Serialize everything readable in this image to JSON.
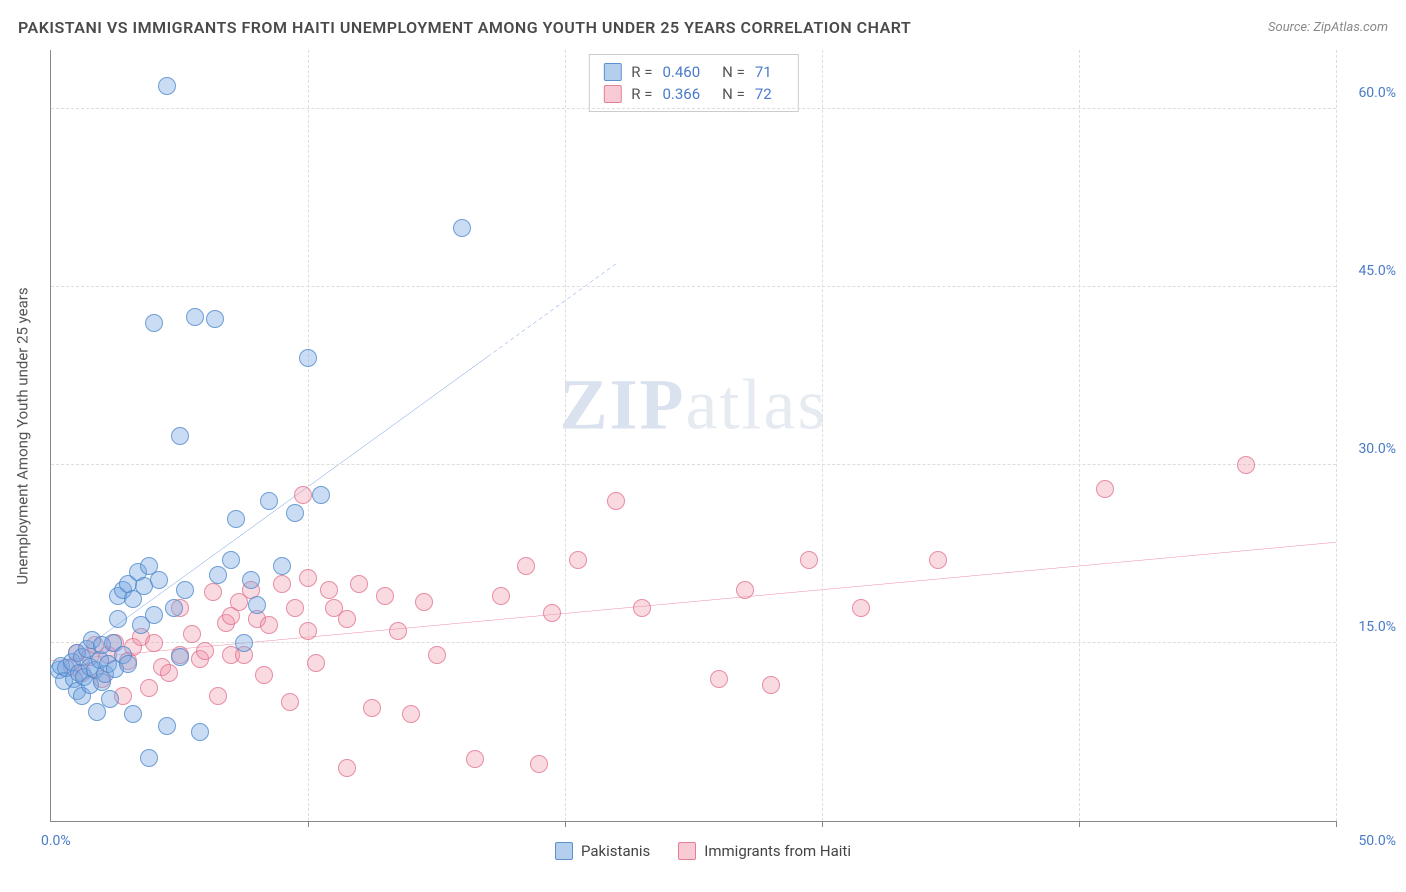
{
  "header": {
    "title": "PAKISTANI VS IMMIGRANTS FROM HAITI UNEMPLOYMENT AMONG YOUTH UNDER 25 YEARS CORRELATION CHART",
    "source_prefix": "Source: ",
    "source_name": "ZipAtlas.com"
  },
  "ylabel": "Unemployment Among Youth under 25 years",
  "watermark": {
    "p1": "ZIP",
    "p2": "atlas"
  },
  "chart": {
    "type": "scatter",
    "xlim": [
      0,
      50
    ],
    "ylim": [
      0,
      65
    ],
    "x_axis_label_start": "0.0%",
    "x_axis_label_end": "50.0%",
    "x_tick_marks_pct": [
      10,
      20,
      30,
      40,
      50
    ],
    "y_ticks": [
      {
        "value": 15,
        "label": "15.0%"
      },
      {
        "value": 30,
        "label": "30.0%"
      },
      {
        "value": 45,
        "label": "45.0%"
      },
      {
        "value": 60,
        "label": "60.0%"
      }
    ],
    "grid_color": "#dddddd",
    "background_color": "#ffffff",
    "series": {
      "blue": {
        "label": "Pakistanis",
        "fill": "rgba(119,167,224,0.4)",
        "stroke": "rgba(70,130,200,0.7)",
        "trend_color": "#2e6bd0",
        "trend": {
          "x1": 0,
          "y1": 12.5,
          "x2": 22,
          "y2": 47,
          "dash_after_x": 17
        },
        "stats": {
          "R": "0.460",
          "N": "71"
        },
        "points": [
          [
            0.3,
            12.7
          ],
          [
            0.4,
            13.1
          ],
          [
            0.5,
            11.8
          ],
          [
            0.6,
            12.9
          ],
          [
            0.8,
            13.4
          ],
          [
            0.9,
            12.0
          ],
          [
            1.0,
            14.2
          ],
          [
            1.0,
            11.0
          ],
          [
            1.1,
            12.5
          ],
          [
            1.2,
            13.8
          ],
          [
            1.2,
            10.5
          ],
          [
            1.3,
            12.1
          ],
          [
            1.4,
            14.5
          ],
          [
            1.5,
            11.5
          ],
          [
            1.5,
            13.0
          ],
          [
            1.6,
            15.3
          ],
          [
            1.7,
            12.7
          ],
          [
            1.8,
            9.2
          ],
          [
            1.9,
            13.6
          ],
          [
            2.0,
            11.7
          ],
          [
            2.0,
            14.8
          ],
          [
            2.1,
            12.4
          ],
          [
            2.2,
            13.2
          ],
          [
            2.3,
            10.3
          ],
          [
            2.4,
            15.0
          ],
          [
            2.5,
            12.8
          ],
          [
            2.6,
            17.0
          ],
          [
            2.6,
            19.0
          ],
          [
            2.8,
            14.0
          ],
          [
            2.8,
            19.5
          ],
          [
            3.0,
            20.0
          ],
          [
            3.0,
            13.2
          ],
          [
            3.2,
            18.7
          ],
          [
            3.2,
            9.0
          ],
          [
            3.4,
            21.0
          ],
          [
            3.5,
            16.5
          ],
          [
            3.6,
            19.8
          ],
          [
            3.8,
            21.5
          ],
          [
            3.8,
            5.3
          ],
          [
            4.0,
            17.4
          ],
          [
            4.0,
            42.0
          ],
          [
            4.2,
            20.3
          ],
          [
            4.5,
            8.0
          ],
          [
            4.5,
            62.0
          ],
          [
            4.8,
            18.0
          ],
          [
            5.0,
            13.8
          ],
          [
            5.0,
            32.5
          ],
          [
            5.2,
            19.5
          ],
          [
            5.6,
            42.5
          ],
          [
            5.8,
            7.5
          ],
          [
            6.4,
            42.3
          ],
          [
            6.5,
            20.7
          ],
          [
            7.0,
            22.0
          ],
          [
            7.2,
            25.5
          ],
          [
            7.5,
            15.0
          ],
          [
            7.8,
            20.3
          ],
          [
            8.0,
            18.2
          ],
          [
            8.5,
            27.0
          ],
          [
            9.0,
            21.5
          ],
          [
            9.5,
            26.0
          ],
          [
            10.0,
            39.0
          ],
          [
            10.5,
            27.5
          ],
          [
            16.0,
            50.0
          ]
        ]
      },
      "pink": {
        "label": "Immigrants from Haiti",
        "fill": "rgba(240,150,170,0.35)",
        "stroke": "rgba(220,100,130,0.65)",
        "trend_color": "#e6577e",
        "trend": {
          "x1": 0,
          "y1": 13.5,
          "x2": 50,
          "y2": 23.5
        },
        "stats": {
          "R": "0.366",
          "N": "72"
        },
        "points": [
          [
            0.8,
            13.0
          ],
          [
            1.0,
            14.2
          ],
          [
            1.2,
            12.5
          ],
          [
            1.5,
            13.8
          ],
          [
            1.7,
            14.8
          ],
          [
            2.0,
            12.0
          ],
          [
            2.2,
            14.0
          ],
          [
            2.5,
            15.0
          ],
          [
            2.8,
            10.5
          ],
          [
            3.0,
            13.5
          ],
          [
            3.2,
            14.7
          ],
          [
            3.5,
            15.5
          ],
          [
            3.8,
            11.2
          ],
          [
            4.0,
            15.0
          ],
          [
            4.3,
            13.0
          ],
          [
            4.6,
            12.5
          ],
          [
            5.0,
            18.0
          ],
          [
            5.0,
            14.0
          ],
          [
            5.5,
            15.8
          ],
          [
            5.8,
            13.7
          ],
          [
            6.0,
            14.3
          ],
          [
            6.3,
            19.3
          ],
          [
            6.5,
            10.5
          ],
          [
            6.8,
            16.7
          ],
          [
            7.0,
            14.0
          ],
          [
            7.0,
            17.3
          ],
          [
            7.3,
            18.5
          ],
          [
            7.5,
            14.0
          ],
          [
            7.8,
            19.5
          ],
          [
            8.0,
            17.0
          ],
          [
            8.3,
            12.3
          ],
          [
            8.5,
            16.5
          ],
          [
            9.0,
            20.0
          ],
          [
            9.3,
            10.0
          ],
          [
            9.5,
            18.0
          ],
          [
            9.8,
            27.5
          ],
          [
            10.0,
            16.0
          ],
          [
            10.0,
            20.5
          ],
          [
            10.3,
            13.3
          ],
          [
            10.8,
            19.5
          ],
          [
            11.0,
            18.0
          ],
          [
            11.5,
            17.0
          ],
          [
            11.5,
            4.5
          ],
          [
            12.0,
            20.0
          ],
          [
            12.5,
            9.5
          ],
          [
            13.0,
            19.0
          ],
          [
            13.5,
            16.0
          ],
          [
            14.0,
            9.0
          ],
          [
            14.5,
            18.5
          ],
          [
            15.0,
            14.0
          ],
          [
            16.5,
            5.2
          ],
          [
            17.5,
            19.0
          ],
          [
            18.5,
            21.5
          ],
          [
            19.0,
            4.8
          ],
          [
            19.5,
            17.5
          ],
          [
            20.5,
            22.0
          ],
          [
            22.0,
            27.0
          ],
          [
            23.0,
            18.0
          ],
          [
            26.0,
            12.0
          ],
          [
            27.0,
            19.5
          ],
          [
            28.0,
            11.5
          ],
          [
            29.5,
            22.0
          ],
          [
            31.5,
            18.0
          ],
          [
            34.5,
            22.0
          ],
          [
            41.0,
            28.0
          ],
          [
            46.5,
            30.0
          ]
        ]
      }
    }
  },
  "legend_stats_labels": {
    "R": "R =",
    "N": "N ="
  }
}
